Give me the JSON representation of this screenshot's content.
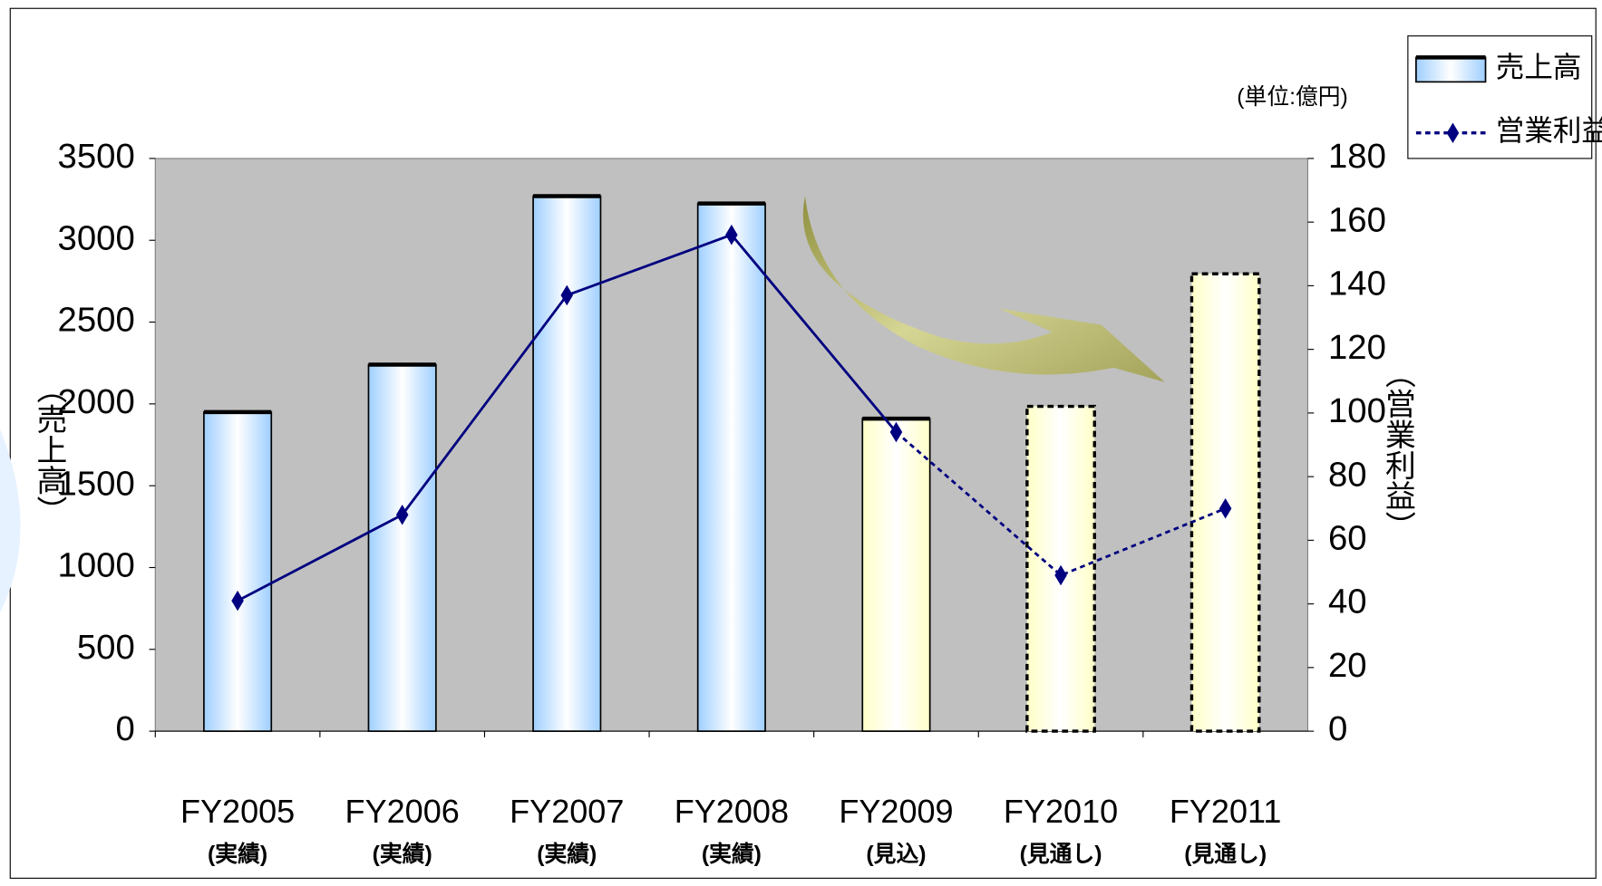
{
  "chart_data": {
    "type": "bar-line",
    "unit_note": "(単位:億円)",
    "categories": [
      "FY2005",
      "FY2006",
      "FY2007",
      "FY2008",
      "FY2009",
      "FY2010",
      "FY2011"
    ],
    "category_notes": [
      "(実績)",
      "(実績)",
      "(実績)",
      "(実績)",
      "(見込)",
      "(見通し)",
      "(見通し)"
    ],
    "ylabel": "（売上高）",
    "y2label": "（営業利益）",
    "ylim": [
      0,
      3500
    ],
    "yticks": [
      0,
      500,
      1000,
      1500,
      2000,
      2500,
      3000,
      3500
    ],
    "y2lim": [
      0,
      180
    ],
    "y2ticks": [
      0,
      20,
      40,
      60,
      80,
      100,
      120,
      140,
      160,
      180
    ],
    "plot_background": "#c0c0c0",
    "series": [
      {
        "name": "売上高",
        "kind": "bar",
        "values": [
          1950,
          2240,
          3270,
          3225,
          1910,
          1985,
          2795
        ],
        "colors": [
          "#9fcfff",
          "#9fcfff",
          "#9fcfff",
          "#9fcfff",
          "#ffffc8",
          "#ffffc8",
          "#ffffc8"
        ],
        "borders": [
          "solid",
          "solid",
          "solid",
          "solid",
          "solid",
          "dashed",
          "dashed"
        ]
      },
      {
        "name": "営業利益",
        "kind": "line",
        "axis": "y2",
        "color": "#000080",
        "values": [
          41,
          68,
          137,
          156,
          94,
          49,
          70
        ],
        "dashed_from": 4
      }
    ]
  }
}
